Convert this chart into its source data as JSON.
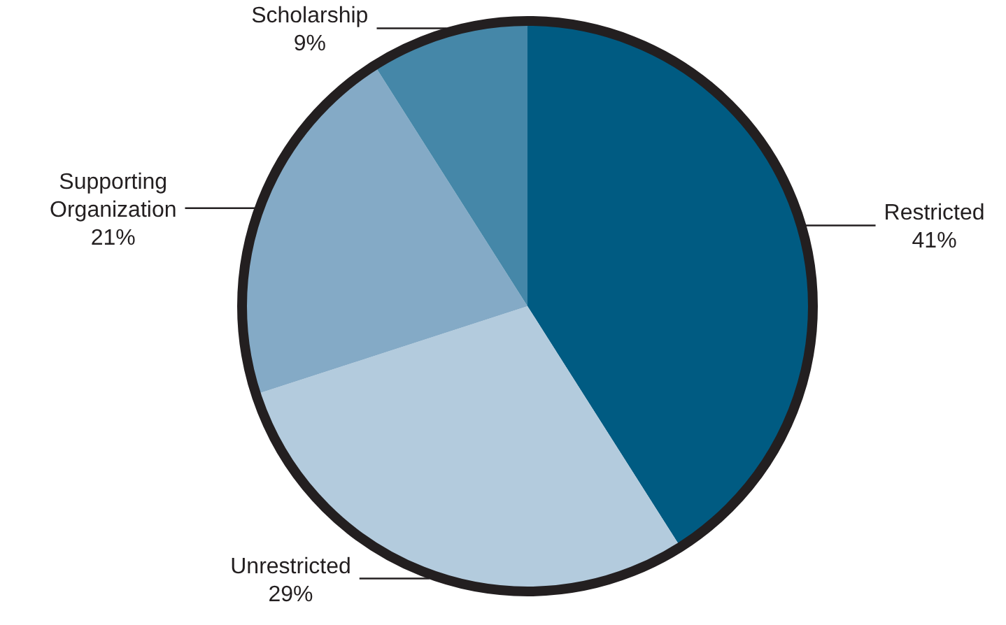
{
  "chart_data": {
    "type": "pie",
    "categories": [
      "Restricted",
      "Unrestricted",
      "Supporting Organization",
      "Scholarship"
    ],
    "values": [
      41,
      29,
      21,
      9
    ],
    "colors": [
      "#005b82",
      "#b3cbdd",
      "#84aac6",
      "#4587a8"
    ],
    "value_labels": [
      "41%",
      "29%",
      "21%",
      "9%"
    ]
  }
}
